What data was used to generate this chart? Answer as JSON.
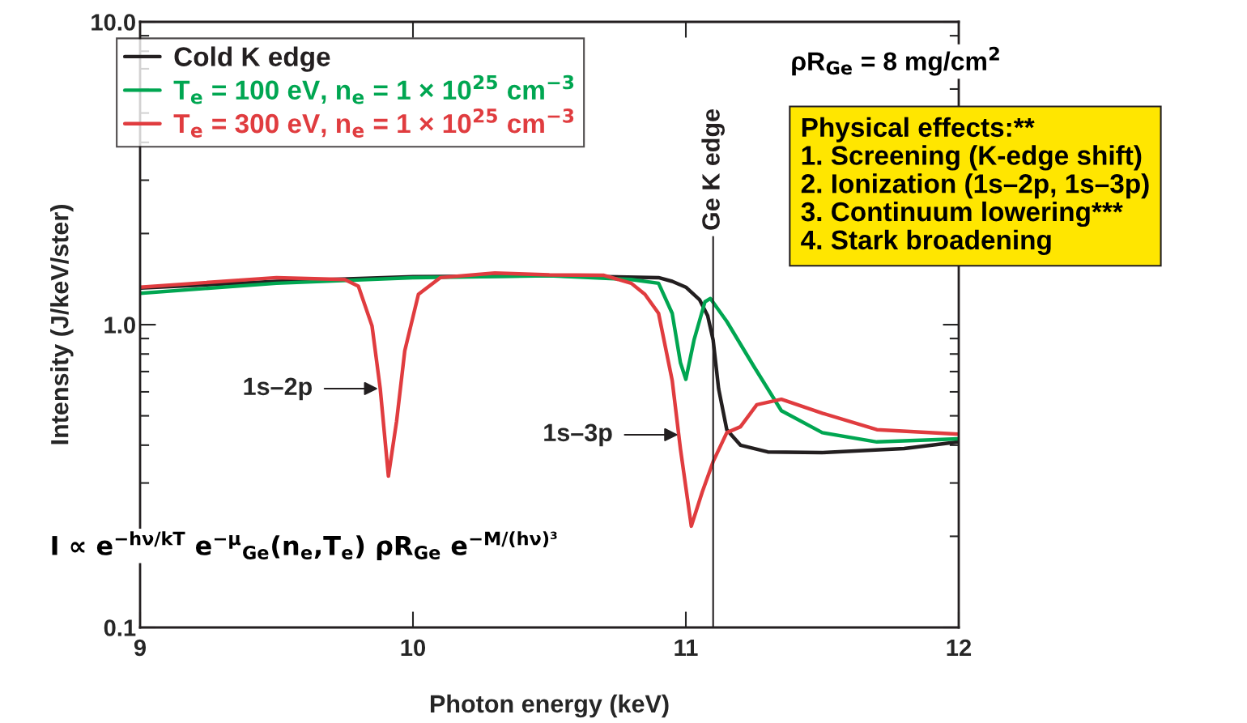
{
  "chart_data": {
    "type": "line",
    "xlabel": "Photon energy (keV)",
    "ylabel": "Intensity (J/keV/ster)",
    "xlim": [
      9,
      12
    ],
    "ylim": [
      0.1,
      10
    ],
    "log": "y",
    "xticks": [
      9,
      10,
      11,
      12
    ],
    "yticks": [
      {
        "value": 0.1,
        "label": "0.1"
      },
      {
        "value": 1,
        "label": "1.0"
      },
      {
        "value": 10,
        "label": "10.0"
      }
    ],
    "legend": "top left",
    "series": [
      {
        "name": "Cold K edge",
        "color": "#231f20",
        "x": [
          9.0,
          9.5,
          10.0,
          10.5,
          10.9,
          10.95,
          11.0,
          11.05,
          11.08,
          11.1,
          11.12,
          11.15,
          11.2,
          11.3,
          11.5,
          11.8,
          12.0
        ],
        "values": [
          1.32,
          1.39,
          1.44,
          1.45,
          1.43,
          1.39,
          1.33,
          1.21,
          1.07,
          0.89,
          0.615,
          0.45,
          0.4,
          0.38,
          0.378,
          0.39,
          0.41
        ]
      },
      {
        "name": "T$_{e}$ = 100 eV, n$_{e}$ = 1 × 10$^{25}$ cm$^{−3}$",
        "color": "#00a651",
        "x": [
          9.0,
          9.5,
          10.0,
          10.5,
          10.8,
          10.9,
          10.95,
          10.98,
          11.0,
          11.03,
          11.07,
          11.09,
          11.15,
          11.25,
          11.35,
          11.5,
          11.7,
          12.0
        ],
        "values": [
          1.27,
          1.37,
          1.43,
          1.45,
          1.41,
          1.37,
          1.09,
          0.75,
          0.66,
          0.89,
          1.19,
          1.22,
          1.025,
          0.726,
          0.52,
          0.44,
          0.41,
          0.42
        ]
      },
      {
        "name": "T$_{e}$ = 300 eV, n$_{e}$ = 1 × 10$^{25}$ cm$^{−3}$",
        "color": "#e03c3f",
        "x": [
          9.0,
          9.5,
          9.75,
          9.8,
          9.85,
          9.88,
          9.91,
          9.94,
          9.97,
          10.02,
          10.1,
          10.3,
          10.5,
          10.7,
          10.8,
          10.85,
          10.9,
          10.95,
          10.98,
          11.02,
          11.06,
          11.1,
          11.15,
          11.2,
          11.26,
          11.35,
          11.5,
          11.7,
          12.0
        ],
        "values": [
          1.33,
          1.43,
          1.41,
          1.34,
          0.99,
          0.615,
          0.316,
          0.48,
          0.82,
          1.26,
          1.43,
          1.48,
          1.46,
          1.455,
          1.37,
          1.26,
          1.09,
          0.654,
          0.39,
          0.216,
          0.28,
          0.353,
          0.44,
          0.46,
          0.544,
          0.567,
          0.51,
          0.45,
          0.435
        ]
      }
    ],
    "ref_lines": [
      {
        "axis": "x",
        "value": 11.1,
        "label": "Ge K edge",
        "color": "#231f20"
      }
    ],
    "annotations": [
      {
        "text": "1s–2p",
        "x": 9.88,
        "y": 0.615
      },
      {
        "text": "1s–3p",
        "x": 10.98,
        "y": 0.433
      },
      "ρR$_{Ge}$ = 8 mg/cm$^{2}$",
      "Physical effects:**\n1. Screening (K-edge shift)\n2. Ionization (1s–2p, 1s–3p)\n3. Continuum lowering***\n4. Stark broadening",
      "I ∝ e$^{−hν/kT}$ e$^{−μ}$$_{Ge}$(n$_{e}$,T$_{e}$) ρR$_{Ge}$ e$^{−M/(hν)³}$"
    ]
  }
}
